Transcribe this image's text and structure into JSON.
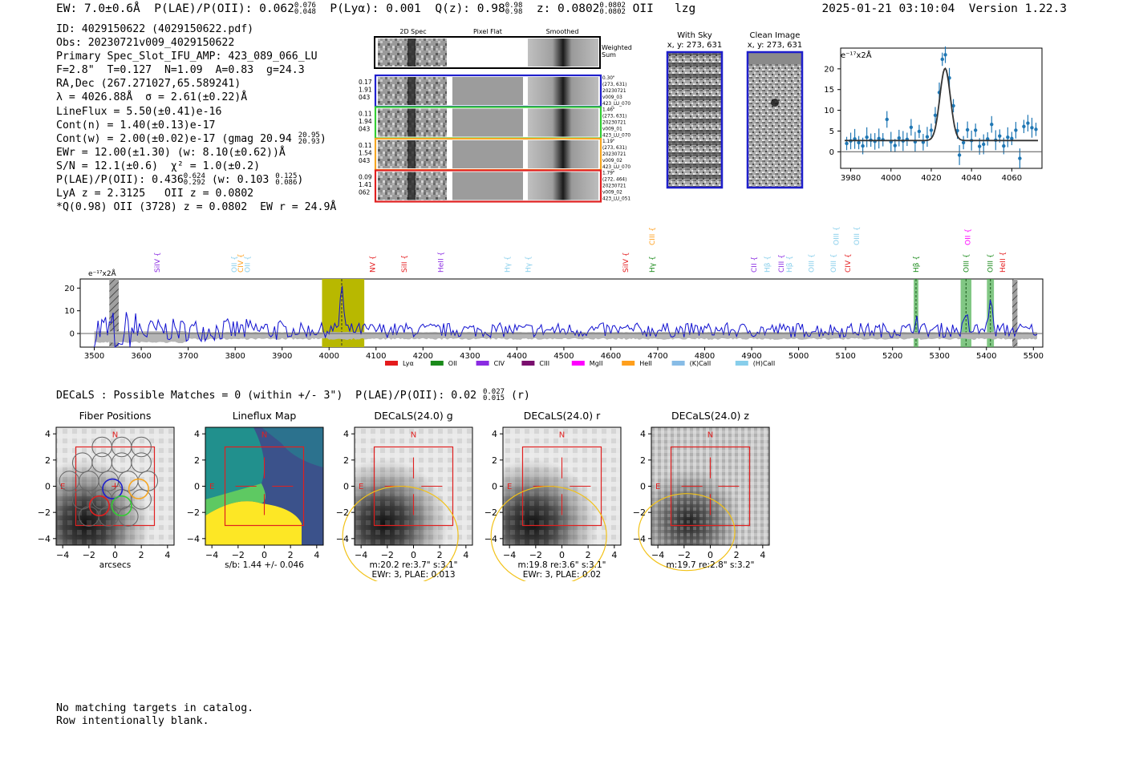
{
  "header": {
    "ew": "EW: 7.0±0.6Å",
    "plae_label": "P(LAE)/P(OII): 0.062",
    "plae_hi": "0.076",
    "plae_lo": "0.048",
    "plya": "P(Lyα): 0.001",
    "qz_label": "Q(z): 0.98",
    "qz_hi": "0.98",
    "qz_lo": "0.98",
    "z_label": "z: 0.0802",
    "z_hi": "0.0802",
    "z_lo": "0.0802",
    "z_line": "OII",
    "tag": "lzg",
    "timestamp": "2025-01-21 03:10:04",
    "version": "Version 1.22.3"
  },
  "info": {
    "id": "ID: 4029150622 (4029150622.pdf)",
    "obs": "Obs: 20230721v009_4029150622",
    "primary": "Primary Spec_Slot_IFU_AMP: 423_089_066_LU",
    "fiber": "F=2.8\"  T=0.127  N=1.09  A=0.83  g=24.3",
    "radec": "RA,Dec (267.271027,65.589241)",
    "lambda_sigma": "λ = 4026.88Å  σ = 2.61(±0.22)Å",
    "lineflux": "LineFlux = 5.50(±0.41)e-16",
    "contn": "Cont(n) = 1.40(±0.13)e-17",
    "contw": "Cont(w) = 2.00(±0.02)e-17 (gmag 20.94",
    "contw_hi": "20.95",
    "contw_lo": "20.93",
    "contw_end": ")",
    "ewr": "EWr = 12.00(±1.30) (w: 8.10(±0.62))Å",
    "sn": "S/N = 12.1(±0.6)  χ² = 1.0(±0.2)",
    "plae2": "P(LAE)/P(OII): 0.436",
    "plae2_hi": "0.624",
    "plae2_lo": "0.292",
    "plae2_w": "(w: 0.103",
    "plae2_w_hi": "0.125",
    "plae2_w_lo": "0.086",
    "plae2_end": ")",
    "lya": "LyA z = 2.3125   OII z = 0.0802",
    "q": "*Q(0.98) OII (3728) z = 0.0802  EW r = 24.9Å"
  },
  "cutouts": {
    "col_headers": [
      "2D Spec",
      "Pixel Flat",
      "Smoothed"
    ],
    "weighted_sum": [
      "Weighted",
      "Sum"
    ],
    "rows": [
      {
        "color": "#1f1fcc",
        "left": [
          "0.17",
          "1.91",
          "043"
        ],
        "right": [
          "0.30\"",
          "(273, 631)",
          "20230721",
          "v009_03",
          "423_LU_070"
        ]
      },
      {
        "color": "#33cc33",
        "left": [
          "0.11",
          "1.94",
          "043"
        ],
        "right": [
          "1.46\"",
          "(273, 631)",
          "20230721",
          "v009_01",
          "423_LU_070"
        ]
      },
      {
        "color": "#f5a623",
        "left": [
          "0.11",
          "1.54",
          "043"
        ],
        "right": [
          "1.19\"",
          "(273, 631)",
          "20230721",
          "v009_02",
          "423_LU_070"
        ]
      },
      {
        "color": "#e02020",
        "left": [
          "0.09",
          "1.41",
          "062"
        ],
        "right": [
          "1.79\"",
          "(272, 464)",
          "20230721",
          "v009_02",
          "423_LU_051"
        ]
      }
    ],
    "with_sky_title": [
      "With Sky",
      "x, y: 273, 631"
    ],
    "clean_title": [
      "Clean Image",
      "x, y: 273, 631"
    ]
  },
  "legend": {
    "entries": [
      {
        "label": "Lyα",
        "color": "#e41a1c"
      },
      {
        "label": "OII",
        "color": "#1a8a1a"
      },
      {
        "label": "CIV",
        "color": "#8a2be2"
      },
      {
        "label": "CIII",
        "color": "#7a0f6e"
      },
      {
        "label": "MgII",
        "color": "#ff00ff"
      },
      {
        "label": "HeII",
        "color": "#ff9f1c"
      },
      {
        "label": "(K)CaII",
        "color": "#87bce6"
      },
      {
        "label": "(H)CaII",
        "color": "#87ceeb"
      }
    ]
  },
  "chart_data": [
    {
      "type": "scatter",
      "title": "",
      "unit_label": "e⁻¹⁷x2Å",
      "xlim": [
        3975,
        4075
      ],
      "ylim": [
        -4,
        25
      ],
      "xticks": [
        3980,
        4000,
        4020,
        4040,
        4060
      ],
      "yticks": [
        0,
        5,
        10,
        15,
        20
      ],
      "points": [
        [
          3978,
          2
        ],
        [
          3980,
          2.6
        ],
        [
          3982,
          3.1
        ],
        [
          3984,
          2.2
        ],
        [
          3986,
          1.4
        ],
        [
          3988,
          3.5
        ],
        [
          3990,
          2.8
        ],
        [
          3992,
          2.5
        ],
        [
          3994,
          3.2
        ],
        [
          3996,
          2.9
        ],
        [
          3998,
          7.8
        ],
        [
          4000,
          2.4
        ],
        [
          4002,
          1.5
        ],
        [
          4004,
          3.3
        ],
        [
          4006,
          2.6
        ],
        [
          4008,
          3.0
        ],
        [
          4010,
          5.9
        ],
        [
          4012,
          2.4
        ],
        [
          4014,
          4.9
        ],
        [
          4016,
          2.3
        ],
        [
          4018,
          3.6
        ],
        [
          4020,
          5.2
        ],
        [
          4022,
          8.8
        ],
        [
          4024,
          14.3
        ],
        [
          4025.5,
          22.3
        ],
        [
          4027,
          23.4
        ],
        [
          4029,
          17.8
        ],
        [
          4031,
          11.1
        ],
        [
          4033,
          5.1
        ],
        [
          4034,
          -0.8
        ],
        [
          4036,
          2.2
        ],
        [
          4038,
          5.3
        ],
        [
          4040,
          2.7
        ],
        [
          4042,
          5.2
        ],
        [
          4044,
          1.3
        ],
        [
          4046,
          1.8
        ],
        [
          4048,
          3.1
        ],
        [
          4050,
          6.6
        ],
        [
          4052,
          2.8
        ],
        [
          4054,
          3.8
        ],
        [
          4056,
          1.4
        ],
        [
          4058,
          3.5
        ],
        [
          4060,
          3.2
        ],
        [
          4062,
          5.2
        ],
        [
          4064,
          -1.6
        ],
        [
          4066,
          6.1
        ],
        [
          4068,
          6.9
        ],
        [
          4070,
          5.8
        ],
        [
          4072,
          5.4
        ]
      ],
      "fit": {
        "continuum": 2.7,
        "amplitude": 17.4,
        "center": 4026.88,
        "sigma": 2.61
      }
    },
    {
      "type": "line",
      "title": "",
      "unit_label": "e⁻¹⁷x2Å",
      "xlim": [
        3470,
        5520
      ],
      "ylim": [
        -6,
        24
      ],
      "xticks": [
        3500,
        3600,
        3700,
        3800,
        3900,
        4000,
        4100,
        4200,
        4300,
        4400,
        4500,
        4600,
        4700,
        4800,
        4900,
        5000,
        5100,
        5200,
        5300,
        5400,
        5500
      ],
      "yticks": [
        0,
        10,
        20
      ],
      "highlight_region": [
        3985,
        4075
      ],
      "peak_wavelength": 4026.88,
      "emission_peaks": [
        [
          4026.88,
          20
        ],
        [
          5250,
          6
        ],
        [
          5357,
          6
        ],
        [
          5408,
          15
        ]
      ],
      "green_bands": [
        [
          5245,
          5255
        ],
        [
          5345,
          5368
        ],
        [
          5401,
          5416
        ]
      ],
      "hatched_bands": [
        [
          3532,
          3552
        ],
        [
          5455,
          5466
        ]
      ],
      "line_markers": [
        {
          "label": "SiIV",
          "wave": 3634,
          "color": "#8a2be2"
        },
        {
          "label": "OII",
          "wave": 3798,
          "color": "#87ceeb"
        },
        {
          "label": "CIV",
          "wave": 3812,
          "color": "#ff9f1c"
        },
        {
          "label": "OII",
          "wave": 3826,
          "color": "#87ceeb"
        },
        {
          "label": "NV",
          "wave": 4093,
          "color": "#e41a1c"
        },
        {
          "label": "SiII",
          "wave": 4160,
          "color": "#e41a1c"
        },
        {
          "label": "HeII",
          "wave": 4238,
          "color": "#8a2be2"
        },
        {
          "label": "Hγ",
          "wave": 4380,
          "color": "#87ceeb"
        },
        {
          "label": "Hγ",
          "wave": 4424,
          "color": "#87ceeb"
        },
        {
          "label": "SiIV",
          "wave": 4632,
          "color": "#e41a1c"
        },
        {
          "label": "CIII",
          "wave": 4688,
          "color": "#ff9f1c",
          "raised": true
        },
        {
          "label": "Hγ",
          "wave": 4688,
          "color": "#1a8a1a"
        },
        {
          "label": "CII",
          "wave": 4905,
          "color": "#8a2be2"
        },
        {
          "label": "Hβ",
          "wave": 4933,
          "color": "#87ceeb"
        },
        {
          "label": "CIII",
          "wave": 4963,
          "color": "#8a2be2"
        },
        {
          "label": "Hβ",
          "wave": 4980,
          "color": "#87ceeb"
        },
        {
          "label": "OIII",
          "wave": 5027,
          "color": "#87ceeb"
        },
        {
          "label": "OIII",
          "wave": 5074,
          "color": "#87ceeb"
        },
        {
          "label": "CIV",
          "wave": 5105,
          "color": "#e41a1c"
        },
        {
          "label": "OIII",
          "wave": 5080,
          "color": "#87ceeb",
          "raised": true
        },
        {
          "label": "OIII",
          "wave": 5124,
          "color": "#87ceeb",
          "raised": true
        },
        {
          "label": "Hβ",
          "wave": 5250,
          "color": "#1a8a1a"
        },
        {
          "label": "OIII",
          "wave": 5357,
          "color": "#1a8a1a"
        },
        {
          "label": "OII",
          "wave": 5360,
          "color": "#ff00ff",
          "raised": true
        },
        {
          "label": "OIII",
          "wave": 5408,
          "color": "#1a8a1a"
        },
        {
          "label": "HeII",
          "wave": 5435,
          "color": "#e41a1c"
        }
      ]
    }
  ],
  "decals": {
    "headline": "DECaLS : Possible Matches = 0 (within +/- 3\")  P(LAE)/P(OII): 0.02",
    "headline_hi": "0.027",
    "headline_lo": "0.015",
    "headline_end": "(r)",
    "axis_ticks": [
      "4",
      "2",
      "0",
      "−2",
      "−4"
    ],
    "compass_n": "N",
    "compass_e": "E",
    "panels": [
      {
        "title": "Fiber Positions",
        "captions": [
          "arcsecs"
        ]
      },
      {
        "title": "Lineflux Map",
        "captions": [
          "s/b: 1.44 +/- 0.046"
        ]
      },
      {
        "title": "DECaLS(24.0) g",
        "captions": [
          "m:20.2  re:3.7\"  s:3.1\"",
          "EWr: 3, PLAE: 0.013"
        ]
      },
      {
        "title": "DECaLS(24.0) r",
        "captions": [
          "m:19.8  re:3.6\"  s:3.1\"",
          "EWr: 3, PLAE: 0.02"
        ]
      },
      {
        "title": "DECaLS(24.0) z",
        "captions": [
          "m:19.7  re:2.8\"  s:3.2\""
        ]
      }
    ]
  },
  "footer": {
    "line1": "No matching targets in catalog.",
    "line2": "Row intentionally blank."
  }
}
